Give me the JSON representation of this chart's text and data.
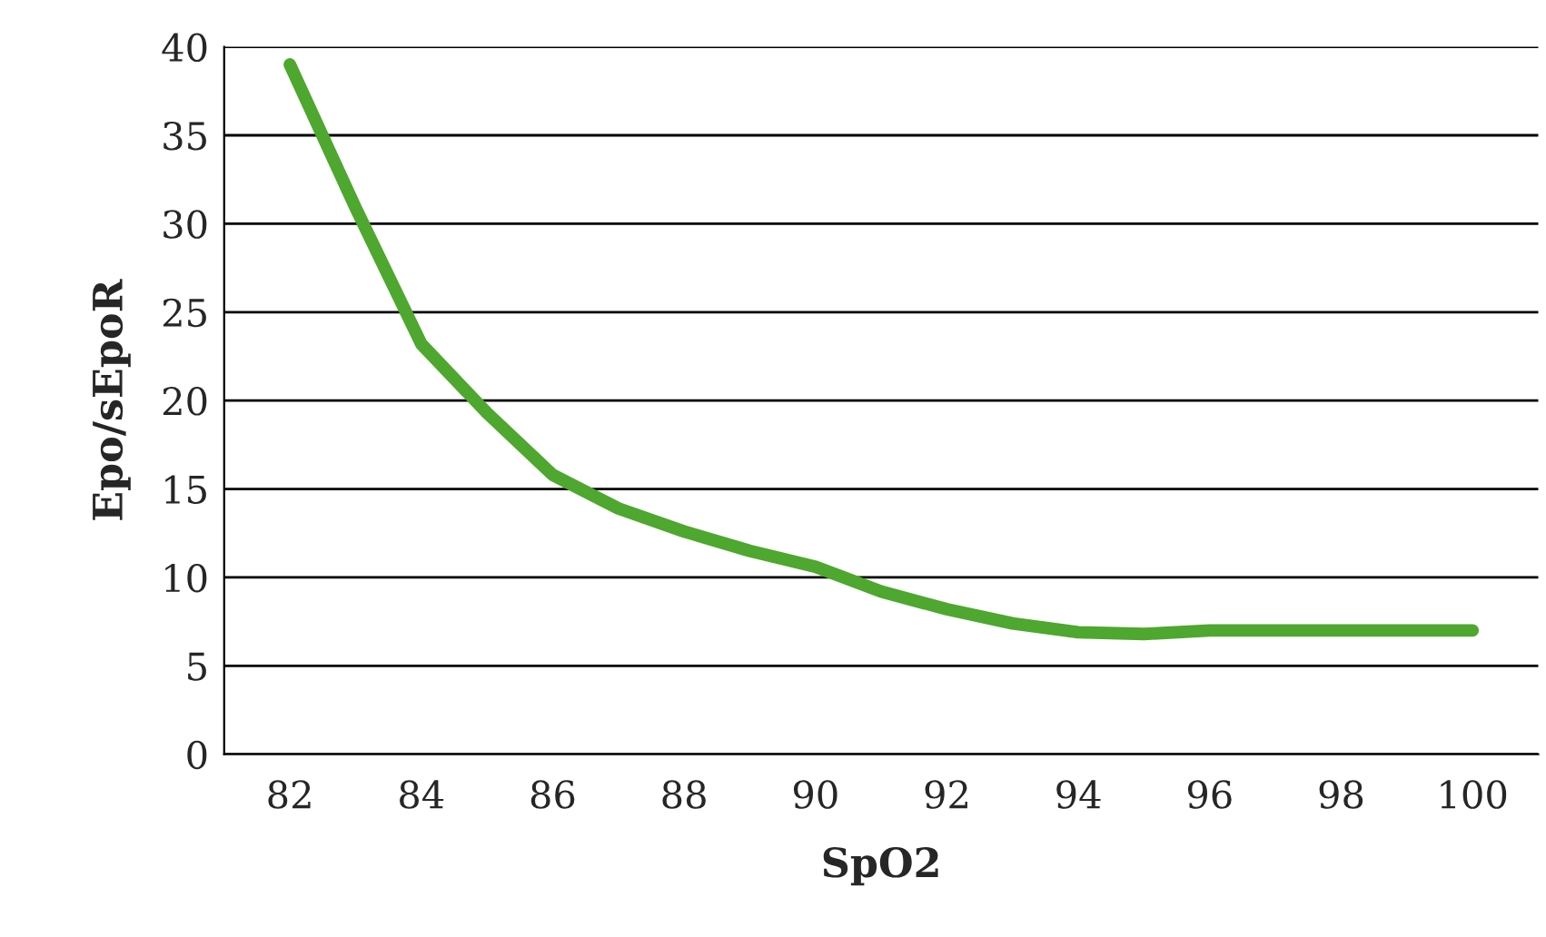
{
  "chart_data": {
    "type": "line",
    "xlabel": "SpO2",
    "ylabel": "Epo/sEpoR",
    "x": [
      82,
      83,
      84,
      85,
      86,
      87,
      88,
      89,
      90,
      91,
      92,
      93,
      94,
      95,
      96,
      97,
      98,
      99,
      100
    ],
    "series": [
      {
        "color": "#4ea72e",
        "values": [
          39,
          30.9,
          23.2,
          19.3,
          15.8,
          13.9,
          12.6,
          11.5,
          10.6,
          9.2,
          8.2,
          7.4,
          6.9,
          6.8,
          7.0,
          7.0,
          7.0,
          7.0,
          7.0
        ]
      }
    ],
    "xlim": [
      81,
      101
    ],
    "xticks": [
      82,
      84,
      86,
      88,
      90,
      92,
      94,
      96,
      98,
      100
    ],
    "ylim": [
      0,
      40
    ],
    "yticks": [
      0,
      5,
      10,
      15,
      20,
      25,
      30,
      35,
      40
    ],
    "grid": "y",
    "legend": false,
    "marker": "none",
    "line_style": "solid"
  }
}
